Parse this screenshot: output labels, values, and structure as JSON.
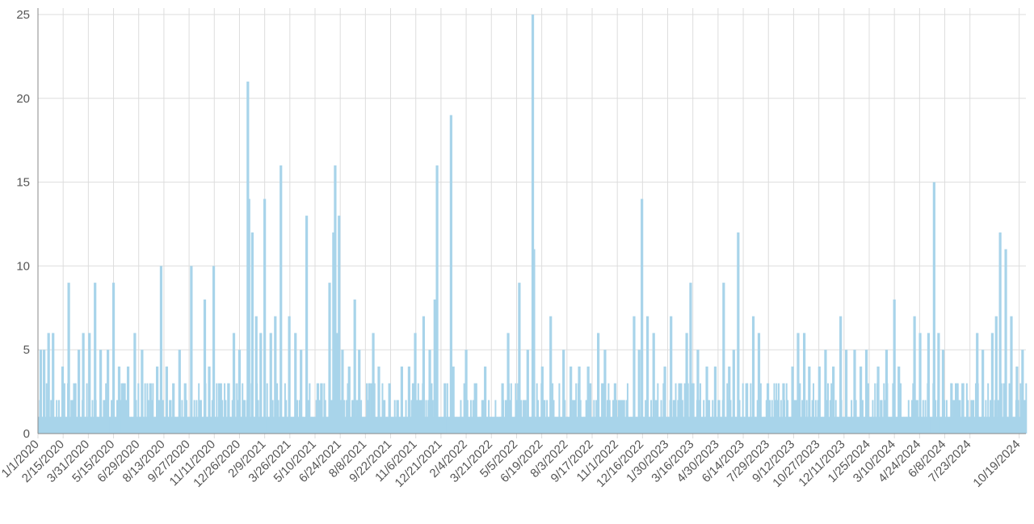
{
  "chart_data": {
    "type": "bar",
    "title": "",
    "xlabel": "",
    "ylabel": "",
    "ylim": [
      0,
      25
    ],
    "y_ticks": [
      "0",
      "5",
      "10",
      "15",
      "20",
      "25"
    ],
    "grid": true,
    "legend": "none",
    "bar_color": "#a8d4ea",
    "x_ticks": [
      "1/1/2020",
      "2/15/2020",
      "3/31/2020",
      "5/15/2020",
      "6/29/2020",
      "8/13/2020",
      "9/27/2020",
      "11/11/2020",
      "12/26/2020",
      "2/9/2021",
      "3/26/2021",
      "5/10/2021",
      "6/24/2021",
      "8/8/2021",
      "9/22/2021",
      "11/6/2021",
      "12/21/2021",
      "2/4/2022",
      "3/21/2022",
      "5/5/2022",
      "6/19/2022",
      "8/3/2022",
      "9/17/2022",
      "11/1/2022",
      "12/16/2022",
      "1/30/2023",
      "3/16/2023",
      "4/30/2023",
      "6/14/2023",
      "7/29/2023",
      "9/12/2023",
      "10/27/2023",
      "12/11/2023",
      "1/25/2024",
      "3/10/2024",
      "4/24/2024",
      "6/8/2024",
      "7/23/2024",
      "10/19/2024"
    ],
    "x_start": "1/1/2020",
    "x_end": "10/31/2024",
    "peaks": [
      {
        "date": "1/6/2020",
        "value": 5
      },
      {
        "date": "1/12/2020",
        "value": 5
      },
      {
        "date": "1/20/2020",
        "value": 6
      },
      {
        "date": "1/28/2020",
        "value": 6
      },
      {
        "date": "2/14/2020",
        "value": 4
      },
      {
        "date": "2/25/2020",
        "value": 9
      },
      {
        "date": "3/6/2020",
        "value": 3
      },
      {
        "date": "3/14/2020",
        "value": 5
      },
      {
        "date": "3/22/2020",
        "value": 6
      },
      {
        "date": "4/2/2020",
        "value": 6
      },
      {
        "date": "4/12/2020",
        "value": 9
      },
      {
        "date": "4/22/2020",
        "value": 5
      },
      {
        "date": "5/5/2020",
        "value": 5
      },
      {
        "date": "5/15/2020",
        "value": 9
      },
      {
        "date": "5/25/2020",
        "value": 4
      },
      {
        "date": "6/10/2020",
        "value": 4
      },
      {
        "date": "6/22/2020",
        "value": 6
      },
      {
        "date": "7/5/2020",
        "value": 5
      },
      {
        "date": "7/20/2020",
        "value": 3
      },
      {
        "date": "8/1/2020",
        "value": 4
      },
      {
        "date": "8/8/2020",
        "value": 10
      },
      {
        "date": "8/18/2020",
        "value": 4
      },
      {
        "date": "8/30/2020",
        "value": 3
      },
      {
        "date": "9/10/2020",
        "value": 5
      },
      {
        "date": "9/20/2020",
        "value": 3
      },
      {
        "date": "10/1/2020",
        "value": 10
      },
      {
        "date": "10/25/2020",
        "value": 8
      },
      {
        "date": "11/2/2020",
        "value": 4
      },
      {
        "date": "11/10/2020",
        "value": 10
      },
      {
        "date": "11/20/2020",
        "value": 3
      },
      {
        "date": "12/16/2020",
        "value": 6
      },
      {
        "date": "12/26/2020",
        "value": 5
      },
      {
        "date": "1/10/2021",
        "value": 21
      },
      {
        "date": "1/12/2021",
        "value": 14
      },
      {
        "date": "1/18/2021",
        "value": 12
      },
      {
        "date": "1/25/2021",
        "value": 7
      },
      {
        "date": "2/2/2021",
        "value": 6
      },
      {
        "date": "2/9/2021",
        "value": 14
      },
      {
        "date": "2/20/2021",
        "value": 6
      },
      {
        "date": "2/28/2021",
        "value": 7
      },
      {
        "date": "3/10/2021",
        "value": 16
      },
      {
        "date": "3/25/2021",
        "value": 7
      },
      {
        "date": "4/5/2021",
        "value": 6
      },
      {
        "date": "4/15/2021",
        "value": 5
      },
      {
        "date": "4/25/2021",
        "value": 13
      },
      {
        "date": "5/15/2021",
        "value": 3
      },
      {
        "date": "6/5/2021",
        "value": 9
      },
      {
        "date": "6/12/2021",
        "value": 12
      },
      {
        "date": "6/15/2021",
        "value": 16
      },
      {
        "date": "6/18/2021",
        "value": 6
      },
      {
        "date": "6/22/2021",
        "value": 13
      },
      {
        "date": "6/28/2021",
        "value": 5
      },
      {
        "date": "7/10/2021",
        "value": 4
      },
      {
        "date": "7/20/2021",
        "value": 8
      },
      {
        "date": "7/28/2021",
        "value": 5
      },
      {
        "date": "8/15/2021",
        "value": 3
      },
      {
        "date": "8/22/2021",
        "value": 6
      },
      {
        "date": "9/1/2021",
        "value": 4
      },
      {
        "date": "9/20/2021",
        "value": 3
      },
      {
        "date": "10/12/2021",
        "value": 4
      },
      {
        "date": "10/25/2021",
        "value": 4
      },
      {
        "date": "11/5/2021",
        "value": 6
      },
      {
        "date": "11/20/2021",
        "value": 7
      },
      {
        "date": "12/1/2021",
        "value": 5
      },
      {
        "date": "12/10/2021",
        "value": 8
      },
      {
        "date": "12/14/2021",
        "value": 16
      },
      {
        "date": "12/28/2021",
        "value": 3
      },
      {
        "date": "1/8/2022",
        "value": 19
      },
      {
        "date": "1/12/2022",
        "value": 4
      },
      {
        "date": "2/4/2022",
        "value": 5
      },
      {
        "date": "2/20/2022",
        "value": 3
      },
      {
        "date": "3/10/2022",
        "value": 4
      },
      {
        "date": "4/10/2022",
        "value": 3
      },
      {
        "date": "4/20/2022",
        "value": 6
      },
      {
        "date": "5/10/2022",
        "value": 9
      },
      {
        "date": "5/25/2022",
        "value": 5
      },
      {
        "date": "6/3/2022",
        "value": 25
      },
      {
        "date": "6/5/2022",
        "value": 11
      },
      {
        "date": "6/20/2022",
        "value": 4
      },
      {
        "date": "7/5/2022",
        "value": 7
      },
      {
        "date": "7/28/2022",
        "value": 5
      },
      {
        "date": "8/10/2022",
        "value": 4
      },
      {
        "date": "8/25/2022",
        "value": 4
      },
      {
        "date": "9/10/2022",
        "value": 4
      },
      {
        "date": "9/28/2022",
        "value": 6
      },
      {
        "date": "10/10/2022",
        "value": 5
      },
      {
        "date": "10/28/2022",
        "value": 3
      },
      {
        "date": "12/1/2022",
        "value": 7
      },
      {
        "date": "12/10/2022",
        "value": 5
      },
      {
        "date": "12/15/2022",
        "value": 14
      },
      {
        "date": "12/25/2022",
        "value": 7
      },
      {
        "date": "1/5/2023",
        "value": 6
      },
      {
        "date": "1/25/2023",
        "value": 4
      },
      {
        "date": "2/5/2023",
        "value": 7
      },
      {
        "date": "2/20/2023",
        "value": 3
      },
      {
        "date": "3/5/2023",
        "value": 6
      },
      {
        "date": "3/12/2023",
        "value": 9
      },
      {
        "date": "3/25/2023",
        "value": 5
      },
      {
        "date": "4/10/2023",
        "value": 4
      },
      {
        "date": "4/25/2023",
        "value": 4
      },
      {
        "date": "5/10/2023",
        "value": 9
      },
      {
        "date": "5/20/2023",
        "value": 4
      },
      {
        "date": "5/28/2023",
        "value": 5
      },
      {
        "date": "6/5/2023",
        "value": 12
      },
      {
        "date": "6/20/2023",
        "value": 3
      },
      {
        "date": "7/2/2023",
        "value": 7
      },
      {
        "date": "7/12/2023",
        "value": 6
      },
      {
        "date": "7/28/2023",
        "value": 3
      },
      {
        "date": "8/25/2023",
        "value": 3
      },
      {
        "date": "9/10/2023",
        "value": 4
      },
      {
        "date": "9/20/2023",
        "value": 6
      },
      {
        "date": "10/1/2023",
        "value": 6
      },
      {
        "date": "10/10/2023",
        "value": 4
      },
      {
        "date": "10/28/2023",
        "value": 4
      },
      {
        "date": "11/8/2023",
        "value": 5
      },
      {
        "date": "11/22/2023",
        "value": 4
      },
      {
        "date": "12/5/2023",
        "value": 7
      },
      {
        "date": "12/15/2023",
        "value": 5
      },
      {
        "date": "12/30/2023",
        "value": 5
      },
      {
        "date": "1/10/2024",
        "value": 4
      },
      {
        "date": "1/20/2024",
        "value": 5
      },
      {
        "date": "2/10/2024",
        "value": 4
      },
      {
        "date": "2/25/2024",
        "value": 5
      },
      {
        "date": "3/10/2024",
        "value": 8
      },
      {
        "date": "3/18/2024",
        "value": 4
      },
      {
        "date": "4/15/2024",
        "value": 7
      },
      {
        "date": "4/25/2024",
        "value": 6
      },
      {
        "date": "5/10/2024",
        "value": 6
      },
      {
        "date": "5/20/2024",
        "value": 15
      },
      {
        "date": "5/28/2024",
        "value": 6
      },
      {
        "date": "6/5/2024",
        "value": 5
      },
      {
        "date": "6/20/2024",
        "value": 3
      },
      {
        "date": "7/10/2024",
        "value": 3
      },
      {
        "date": "8/5/2024",
        "value": 6
      },
      {
        "date": "8/15/2024",
        "value": 5
      },
      {
        "date": "9/1/2024",
        "value": 6
      },
      {
        "date": "9/8/2024",
        "value": 7
      },
      {
        "date": "9/15/2024",
        "value": 12
      },
      {
        "date": "9/25/2024",
        "value": 11
      },
      {
        "date": "10/5/2024",
        "value": 7
      },
      {
        "date": "10/15/2024",
        "value": 4
      },
      {
        "date": "10/25/2024",
        "value": 5
      }
    ]
  }
}
